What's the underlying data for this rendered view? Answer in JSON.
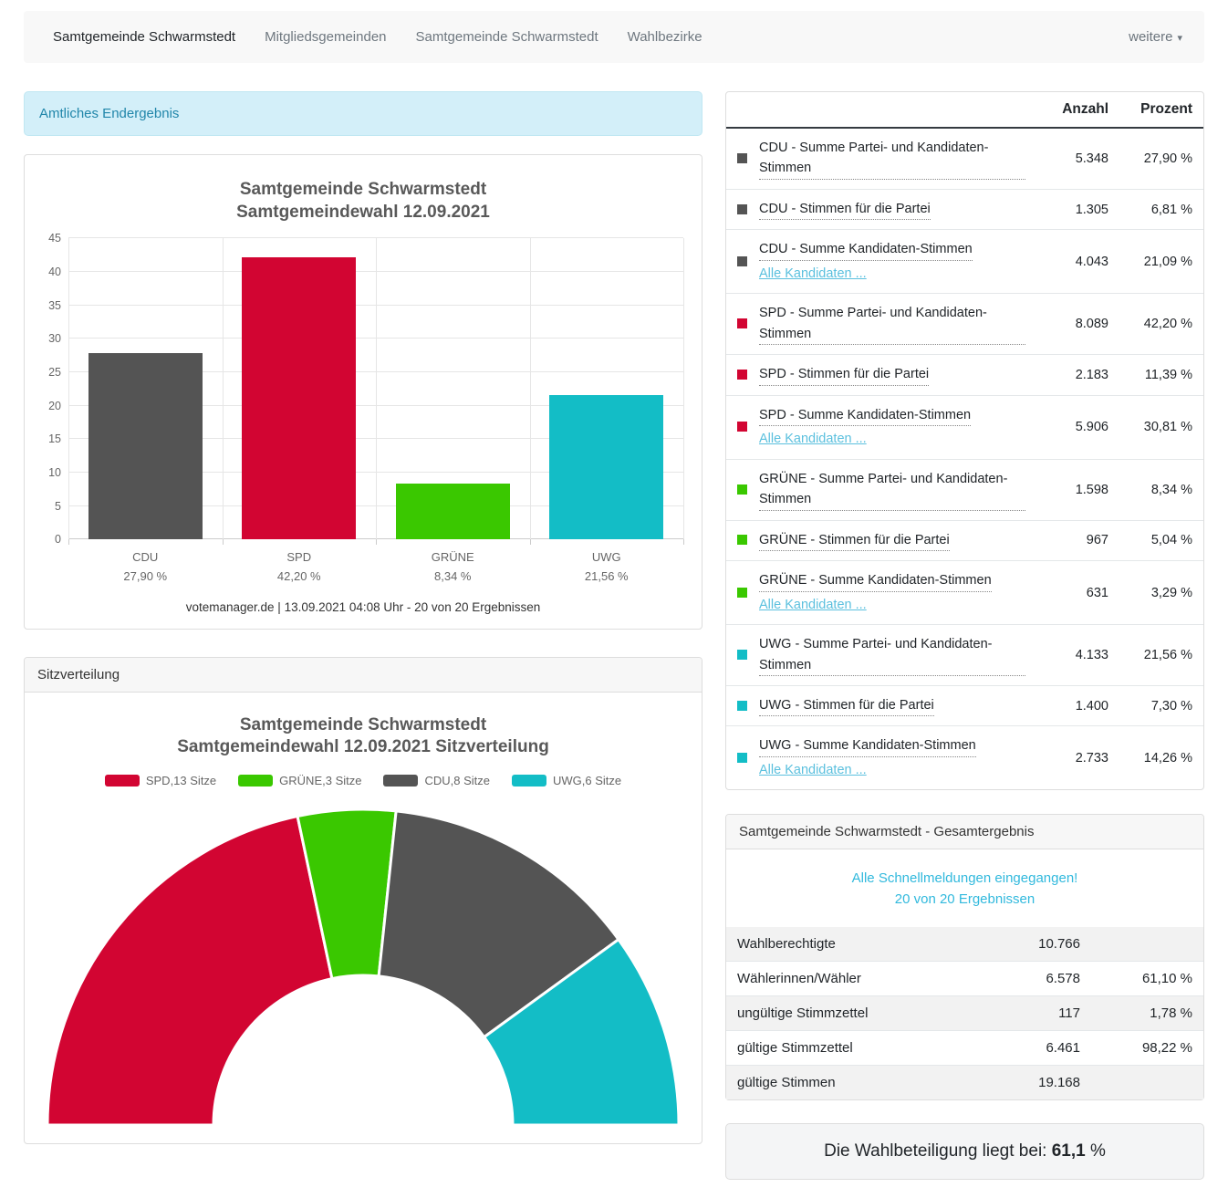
{
  "navbar": {
    "items": [
      {
        "label": "Samtgemeinde Schwarmstedt",
        "active": true
      },
      {
        "label": "Mitgliedsgemeinden",
        "active": false
      },
      {
        "label": "Samtgemeinde Schwarmstedt",
        "active": false
      },
      {
        "label": "Wahlbezirke",
        "active": false
      }
    ],
    "more_label": "weitere"
  },
  "alert": {
    "text": "Amtliches Endergebnis"
  },
  "party_colors": {
    "CDU": "#545454",
    "SPD": "#d20532",
    "GRÜNE": "#3ac800",
    "UWG": "#13bdc6"
  },
  "chart_data": [
    {
      "type": "bar",
      "title": "Samtgemeinde Schwarmstedt",
      "subtitle": "Samtgemeindewahl 12.09.2021",
      "categories": [
        "CDU",
        "SPD",
        "GRÜNE",
        "UWG"
      ],
      "values": [
        27.9,
        42.2,
        8.34,
        21.56
      ],
      "value_labels": [
        "27,90 %",
        "42,20 %",
        "8,34 %",
        "21,56 %"
      ],
      "colors": [
        "#545454",
        "#d20532",
        "#3ac800",
        "#13bdc6"
      ],
      "ylim": [
        0,
        45
      ],
      "ytick_step": 5,
      "grid": true,
      "legend_position": "none",
      "credits": "votemanager.de | 13.09.2021 04:08 Uhr - 20 von 20 Ergebnissen"
    },
    {
      "type": "pie",
      "shape": "half-donut",
      "panel_heading": "Sitzverteilung",
      "title": "Samtgemeinde Schwarmstedt",
      "subtitle": "Samtgemeindewahl 12.09.2021 Sitzverteilung",
      "legend_position": "top",
      "total_seats": 30,
      "segments": [
        {
          "name": "SPD",
          "seats": 13,
          "label": "SPD,13 Sitze",
          "color": "#d20532"
        },
        {
          "name": "GRÜNE",
          "seats": 3,
          "label": "GRÜNE,3 Sitze",
          "color": "#3ac800"
        },
        {
          "name": "CDU",
          "seats": 8,
          "label": "CDU,8 Sitze",
          "color": "#545454"
        },
        {
          "name": "UWG",
          "seats": 6,
          "label": "UWG,6 Sitze",
          "color": "#13bdc6"
        }
      ]
    }
  ],
  "results_table": {
    "col_anzahl": "Anzahl",
    "col_prozent": "Prozent",
    "rows": [
      {
        "party": "CDU",
        "label": "CDU - Summe Partei- und Kandidaten-Stimmen",
        "sublink": "",
        "anzahl": "5.348",
        "prozent": "27,90 %"
      },
      {
        "party": "CDU",
        "label": "CDU - Stimmen für die Partei",
        "sublink": "",
        "anzahl": "1.305",
        "prozent": "6,81 %"
      },
      {
        "party": "CDU",
        "label": "CDU - Summe Kandidaten-Stimmen",
        "sublink": "Alle Kandidaten ...",
        "anzahl": "4.043",
        "prozent": "21,09 %"
      },
      {
        "party": "SPD",
        "label": "SPD - Summe Partei- und Kandidaten-Stimmen",
        "sublink": "",
        "anzahl": "8.089",
        "prozent": "42,20 %"
      },
      {
        "party": "SPD",
        "label": "SPD - Stimmen für die Partei",
        "sublink": "",
        "anzahl": "2.183",
        "prozent": "11,39 %"
      },
      {
        "party": "SPD",
        "label": "SPD - Summe Kandidaten-Stimmen",
        "sublink": "Alle Kandidaten ...",
        "anzahl": "5.906",
        "prozent": "30,81 %"
      },
      {
        "party": "GRÜNE",
        "label": "GRÜNE - Summe Partei- und Kandidaten-Stimmen",
        "sublink": "",
        "anzahl": "1.598",
        "prozent": "8,34 %"
      },
      {
        "party": "GRÜNE",
        "label": "GRÜNE - Stimmen für die Partei",
        "sublink": "",
        "anzahl": "967",
        "prozent": "5,04 %"
      },
      {
        "party": "GRÜNE",
        "label": "GRÜNE - Summe Kandidaten-Stimmen",
        "sublink": "Alle Kandidaten ...",
        "anzahl": "631",
        "prozent": "3,29 %"
      },
      {
        "party": "UWG",
        "label": "UWG - Summe Partei- und Kandidaten-Stimmen",
        "sublink": "",
        "anzahl": "4.133",
        "prozent": "21,56 %"
      },
      {
        "party": "UWG",
        "label": "UWG - Stimmen für die Partei",
        "sublink": "",
        "anzahl": "1.400",
        "prozent": "7,30 %"
      },
      {
        "party": "UWG",
        "label": "UWG - Summe Kandidaten-Stimmen",
        "sublink": "Alle Kandidaten ...",
        "anzahl": "2.733",
        "prozent": "14,26 %"
      }
    ]
  },
  "gesamt": {
    "title": "Samtgemeinde Schwarmstedt - Gesamtergebnis",
    "status_line1": "Alle Schnellmeldungen eingegangen!",
    "status_line2": "20 von 20 Ergebnissen",
    "rows": [
      {
        "label": "Wahlberechtigte",
        "anzahl": "10.766",
        "prozent": ""
      },
      {
        "label": "Wählerinnen/Wähler",
        "anzahl": "6.578",
        "prozent": "61,10 %"
      },
      {
        "label": "ungültige Stimmzettel",
        "anzahl": "117",
        "prozent": "1,78 %"
      },
      {
        "label": "gültige Stimmzettel",
        "anzahl": "6.461",
        "prozent": "98,22 %"
      },
      {
        "label": "gültige Stimmen",
        "anzahl": "19.168",
        "prozent": ""
      }
    ]
  },
  "turnout": {
    "prefix": "Die Wahlbeteiligung liegt bei:",
    "value": "61,1",
    "suffix": "%"
  }
}
